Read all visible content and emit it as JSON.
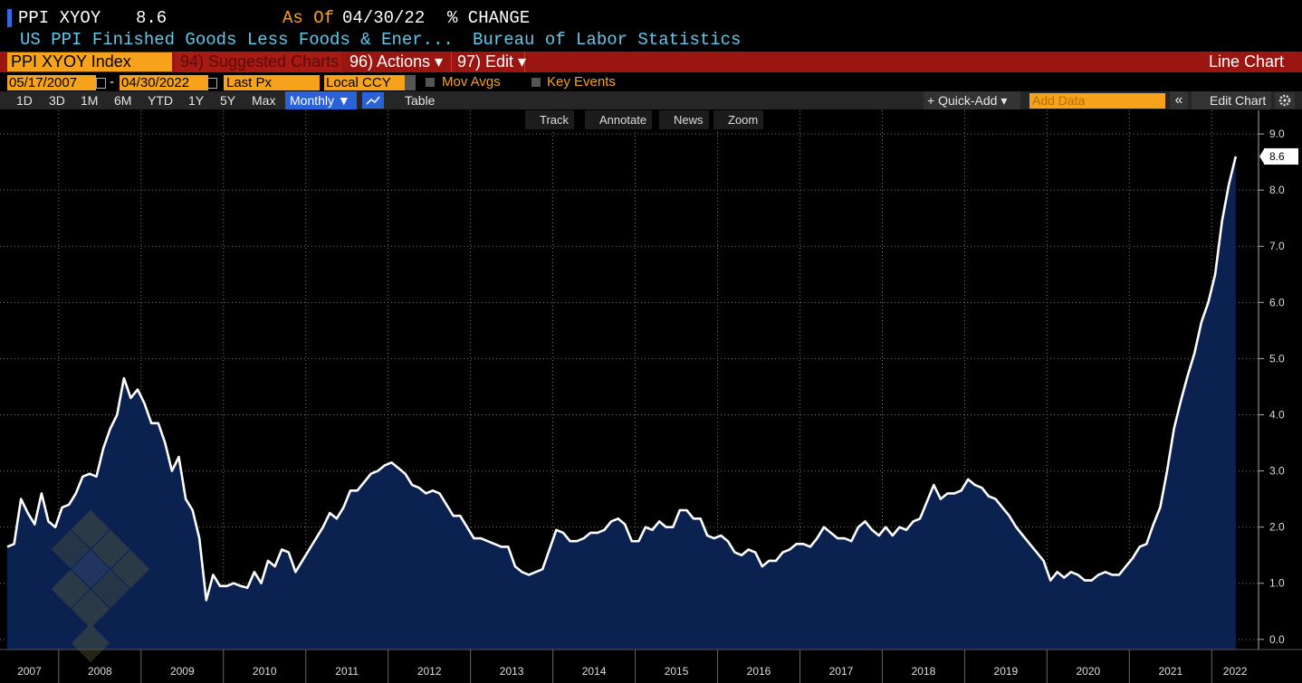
{
  "header": {
    "ticker": "PPI XYOY",
    "last_value": "8.6",
    "as_of_label": "As Of",
    "as_of_date": "04/30/22",
    "unit": "% CHANGE",
    "description": "US PPI Finished Goods Less Foods & Ener...",
    "source": "Bureau of Labor Statistics"
  },
  "menu": {
    "security": "PPI XYOY Index",
    "suggested": "94) Suggested Charts",
    "actions": "96) Actions ▾",
    "edit": "97) Edit ▾",
    "chart_type": "Line Chart"
  },
  "settings": {
    "start_date": "05/17/2007",
    "separator": "-",
    "end_date": "04/30/2022",
    "field": "Last Px",
    "currency": "Local CCY",
    "mov_avgs": "Mov Avgs",
    "key_events": "Key Events"
  },
  "toolbar": {
    "ranges": [
      "1D",
      "3D",
      "1M",
      "6M",
      "YTD",
      "1Y",
      "5Y",
      "Max"
    ],
    "frequency": "Monthly ▼",
    "table": "Table",
    "quick_add": "+ Quick-Add ▾",
    "add_data": "Add Data",
    "collapse": "«",
    "edit_chart": "Edit Chart"
  },
  "chart_tools": [
    "Track",
    "Annotate",
    "News",
    "Zoom"
  ],
  "chart_data": {
    "type": "area",
    "color": "#ffffff",
    "area_color": "#0b2150",
    "grid": true,
    "categories": [
      "2007",
      null,
      null,
      null,
      null,
      null,
      null,
      null,
      "2008",
      null,
      null,
      null,
      null,
      null,
      null,
      null,
      null,
      null,
      null,
      null,
      "2009",
      null,
      null,
      null,
      null,
      null,
      null,
      null,
      null,
      null,
      null,
      null,
      "2010",
      null,
      null,
      null,
      null,
      null,
      null,
      null,
      null,
      null,
      null,
      null,
      "2011",
      null,
      null,
      null,
      null,
      null,
      null,
      null,
      null,
      null,
      null,
      null,
      "2012",
      null,
      null,
      null,
      null,
      null,
      null,
      null,
      null,
      null,
      null,
      null,
      "2013",
      null,
      null,
      null,
      null,
      null,
      null,
      null,
      null,
      null,
      null,
      null,
      "2014",
      null,
      null,
      null,
      null,
      null,
      null,
      null,
      null,
      null,
      null,
      null,
      "2015",
      null,
      null,
      null,
      null,
      null,
      null,
      null,
      null,
      null,
      null,
      null,
      "2016",
      null,
      null,
      null,
      null,
      null,
      null,
      null,
      null,
      null,
      null,
      null,
      "2017",
      null,
      null,
      null,
      null,
      null,
      null,
      null,
      null,
      null,
      null,
      null,
      "2018",
      null,
      null,
      null,
      null,
      null,
      null,
      null,
      null,
      null,
      null,
      null,
      "2019",
      null,
      null,
      null,
      null,
      null,
      null,
      null,
      null,
      null,
      null,
      null,
      "2020",
      null,
      null,
      null,
      null,
      null,
      null,
      null,
      null,
      null,
      null,
      null,
      "2021",
      null,
      null,
      null,
      null,
      null,
      null,
      null,
      null,
      null,
      null,
      null,
      "2022",
      null,
      null,
      null
    ],
    "values": [
      1.65,
      1.7,
      2.5,
      2.25,
      2.05,
      2.6,
      2.1,
      2.0,
      2.35,
      2.4,
      2.6,
      2.9,
      2.95,
      2.9,
      3.4,
      3.75,
      4.0,
      4.65,
      4.3,
      4.45,
      4.2,
      3.85,
      3.85,
      3.5,
      3.0,
      3.25,
      2.5,
      2.3,
      1.8,
      0.7,
      1.15,
      0.95,
      0.95,
      1.0,
      0.95,
      0.92,
      1.2,
      1.0,
      1.4,
      1.3,
      1.6,
      1.55,
      1.2,
      1.4,
      1.6,
      1.8,
      2.0,
      2.25,
      2.15,
      2.35,
      2.65,
      2.65,
      2.8,
      2.95,
      3.0,
      3.1,
      3.15,
      3.05,
      2.95,
      2.75,
      2.7,
      2.6,
      2.65,
      2.6,
      2.4,
      2.2,
      2.2,
      2.0,
      1.8,
      1.8,
      1.75,
      1.7,
      1.65,
      1.65,
      1.3,
      1.2,
      1.15,
      1.2,
      1.25,
      1.6,
      1.95,
      1.9,
      1.75,
      1.75,
      1.8,
      1.9,
      1.9,
      1.95,
      2.1,
      2.15,
      2.05,
      1.75,
      1.75,
      2.0,
      1.95,
      2.1,
      2.0,
      2.0,
      2.3,
      2.3,
      2.15,
      2.15,
      1.85,
      1.8,
      1.85,
      1.75,
      1.55,
      1.5,
      1.6,
      1.55,
      1.3,
      1.4,
      1.4,
      1.55,
      1.6,
      1.7,
      1.7,
      1.65,
      1.8,
      2.0,
      1.9,
      1.8,
      1.8,
      1.75,
      2.0,
      2.1,
      1.95,
      1.85,
      2.0,
      1.85,
      2.0,
      1.95,
      2.1,
      2.15,
      2.45,
      2.75,
      2.5,
      2.6,
      2.6,
      2.65,
      2.85,
      2.75,
      2.7,
      2.55,
      2.5,
      2.35,
      2.2,
      2.0,
      1.85,
      1.7,
      1.55,
      1.4,
      1.05,
      1.2,
      1.1,
      1.2,
      1.15,
      1.05,
      1.05,
      1.15,
      1.2,
      1.15,
      1.15,
      1.3,
      1.45,
      1.65,
      1.7,
      2.05,
      2.35,
      3.0,
      3.75,
      4.25,
      4.7,
      5.1,
      5.65,
      6.0,
      6.5,
      7.45,
      8.1,
      8.6
    ],
    "ylim": [
      -0.18,
      9.42
    ],
    "yticks": [
      {
        "value": 0,
        "label": "0.0"
      },
      {
        "value": 1,
        "label": "1.0"
      },
      {
        "value": 2,
        "label": "2.0"
      },
      {
        "value": 3,
        "label": "3.0"
      },
      {
        "value": 4,
        "label": "4.0"
      },
      {
        "value": 5,
        "label": "5.0"
      },
      {
        "value": 6,
        "label": "6.0"
      },
      {
        "value": 7,
        "label": "7.0"
      },
      {
        "value": 8,
        "label": "8.0"
      },
      {
        "value": 9,
        "label": "9.0"
      }
    ]
  }
}
